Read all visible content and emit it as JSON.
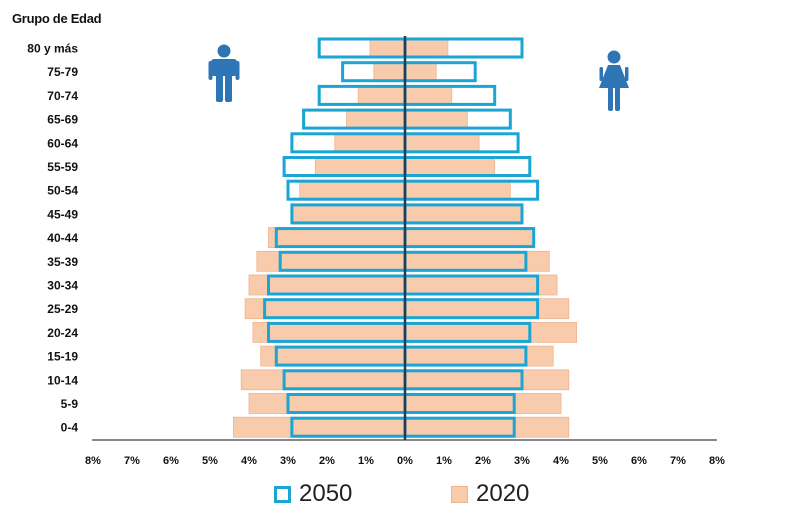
{
  "chart_data": {
    "type": "bar",
    "subtype": "population-pyramid",
    "title": "",
    "ylabel": "Grupo de Edad",
    "categories": [
      "80 y más",
      "75-79",
      "70-74",
      "65-69",
      "60-64",
      "55-59",
      "50-54",
      "45-49",
      "40-44",
      "35-39",
      "30-34",
      "25-29",
      "20-24",
      "15-19",
      "10-14",
      "5-9",
      "0-4"
    ],
    "xlim": [
      -8,
      8
    ],
    "xticks": [
      "8%",
      "7%",
      "6%",
      "5%",
      "4%",
      "3%",
      "2%",
      "1%",
      "0%",
      "1%",
      "2%",
      "3%",
      "4%",
      "5%",
      "6%",
      "7%",
      "8%"
    ],
    "series": [
      {
        "name": "2050",
        "color": "#1aa5d4",
        "style": "outline",
        "male": [
          2.2,
          1.6,
          2.2,
          2.6,
          2.9,
          3.1,
          3.0,
          2.9,
          3.3,
          3.2,
          3.5,
          3.6,
          3.5,
          3.3,
          3.1,
          3.0,
          2.9
        ],
        "female": [
          3.0,
          1.8,
          2.3,
          2.7,
          2.9,
          3.2,
          3.4,
          3.0,
          3.3,
          3.1,
          3.4,
          3.4,
          3.2,
          3.1,
          3.0,
          2.8,
          2.8
        ]
      },
      {
        "name": "2020",
        "color": "#f8cbad",
        "style": "filled",
        "male": [
          0.9,
          0.8,
          1.2,
          1.5,
          1.8,
          2.3,
          2.7,
          2.9,
          3.5,
          3.8,
          4.0,
          4.1,
          3.9,
          3.7,
          4.2,
          4.0,
          4.4
        ],
        "female": [
          1.1,
          0.8,
          1.2,
          1.6,
          1.9,
          2.3,
          2.7,
          3.0,
          3.3,
          3.7,
          3.9,
          4.2,
          4.4,
          3.8,
          4.2,
          4.0,
          4.2
        ]
      }
    ],
    "grid": false,
    "legend_position": "bottom-center"
  },
  "icons": {
    "male": "male-person-icon",
    "female": "female-person-icon"
  }
}
